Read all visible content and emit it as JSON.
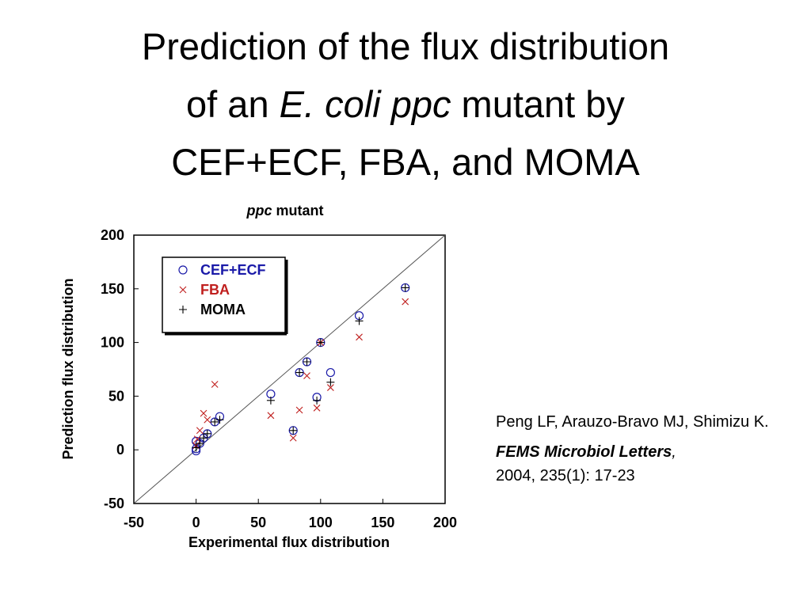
{
  "slide_title": [
    "Prediction of the flux distribution",
    "of an",
    "E. coli ppc",
    "mutant by",
    "CEF+ECF, FBA, and MOMA"
  ],
  "citation": {
    "authors": "Peng LF, Arauzo-Bravo MJ, Shimizu K.",
    "journal": "FEMS Microbiol Letters",
    "journal_punct": ",",
    "details": "2004, 235(1): 17-23"
  },
  "chart_data": {
    "type": "scatter",
    "title": [
      "ppc",
      "mutant"
    ],
    "x_label": "Experimental flux distribution",
    "y_label": "Prediction flux distribution",
    "xlim": [
      -50,
      200
    ],
    "ylim": [
      -50,
      200
    ],
    "xticks": [
      -50,
      0,
      50,
      100,
      150,
      200
    ],
    "yticks": [
      -50,
      0,
      50,
      100,
      150,
      200
    ],
    "diagonal": true,
    "legend": "upper left",
    "series": [
      {
        "name": "CEF+ECF",
        "color": "#1a1aa8",
        "marker": "circle",
        "x": [
          168,
          131,
          100,
          89,
          83,
          108,
          97,
          60,
          78,
          19,
          15,
          9,
          6,
          3,
          0,
          0,
          0
        ],
        "values": [
          151,
          125,
          100,
          82,
          72,
          72,
          49,
          52,
          18,
          31,
          26,
          15,
          11,
          6,
          8,
          1,
          -1
        ]
      },
      {
        "name": "FBA",
        "color": "#c0201f",
        "marker": "x",
        "x": [
          168,
          131,
          100,
          89,
          15,
          83,
          60,
          97,
          108,
          78,
          6,
          9,
          3,
          1,
          0
        ],
        "values": [
          138,
          105,
          100,
          69,
          61,
          37,
          32,
          39,
          58,
          11,
          34,
          28,
          18,
          10,
          4
        ]
      },
      {
        "name": "MOMA",
        "color": "#000000",
        "marker": "plus",
        "x": [
          168,
          131,
          100,
          89,
          83,
          108,
          97,
          60,
          78,
          19,
          15,
          9,
          6,
          3,
          0
        ],
        "values": [
          151,
          120,
          100,
          82,
          72,
          63,
          46,
          46,
          18,
          28,
          26,
          15,
          11,
          6,
          2
        ]
      }
    ]
  }
}
